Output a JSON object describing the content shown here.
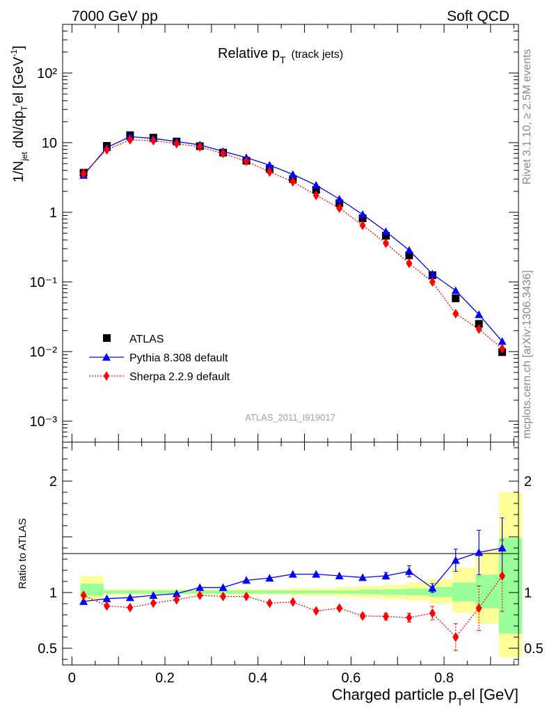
{
  "header": {
    "left": "7000 GeV pp",
    "right": "Soft QCD"
  },
  "side_text": {
    "rivet": "Rivet 3.1.10, ≥ 2.5M events",
    "mcplots": "mcplots.cern.ch [arXiv:1306.3436]"
  },
  "analysis_id": "ATLAS_2011_I919017",
  "colors": {
    "atlas": "#000000",
    "pythia": "#0000ff",
    "sherpa": "#ff0000",
    "band_inner": "#99ff99",
    "band_outer": "#ffff99"
  },
  "chart_data": [
    {
      "type": "scatter",
      "title_main": "Relative p",
      "title_sub": "T",
      "title_extra": "(track jets)",
      "ylabel": "1/N",
      "y_scale": "log",
      "ylim": [
        0.0005,
        500
      ],
      "xlim": [
        -0.02,
        0.96
      ],
      "y_ticks": [
        "10⁻³",
        "10⁻²",
        "10⁻¹",
        "1",
        "10",
        "10²"
      ],
      "legend_position": "lower-left",
      "x": [
        0.025,
        0.075,
        0.125,
        0.175,
        0.225,
        0.275,
        0.325,
        0.375,
        0.425,
        0.475,
        0.525,
        0.575,
        0.625,
        0.675,
        0.725,
        0.775,
        0.825,
        0.875,
        0.925
      ],
      "series": [
        {
          "name": "ATLAS",
          "marker": "square",
          "values": [
            3.7,
            9.0,
            12.8,
            11.8,
            10.4,
            8.9,
            7.2,
            5.5,
            4.2,
            3.0,
            2.1,
            1.35,
            0.82,
            0.46,
            0.24,
            0.125,
            0.058,
            0.025,
            0.0098
          ]
        },
        {
          "name": "Pythia 8.308 default",
          "marker": "triangle",
          "line": "solid",
          "values": [
            3.4,
            8.5,
            12.2,
            11.5,
            10.4,
            9.3,
            7.5,
            6.1,
            4.75,
            3.5,
            2.45,
            1.55,
            0.93,
            0.53,
            0.285,
            0.13,
            0.075,
            0.034,
            0.014
          ]
        },
        {
          "name": "Sherpa 2.2.9 default",
          "marker": "diamond",
          "line": "dotted",
          "values": [
            3.6,
            7.9,
            11.0,
            10.7,
            9.7,
            8.7,
            7.0,
            5.4,
            3.8,
            2.75,
            1.75,
            1.15,
            0.65,
            0.36,
            0.185,
            0.1,
            0.035,
            0.021,
            0.011
          ]
        }
      ]
    },
    {
      "type": "scatter",
      "xlabel": "Charged particle p",
      "xlabel_sub": "T",
      "xlabel_suffix": "el [GeV]",
      "ylabel": "Ratio to ATLAS",
      "ylim": [
        0.35,
        2.35
      ],
      "xlim": [
        -0.02,
        0.96
      ],
      "x_ticks": [
        "0",
        "0.2",
        "0.4",
        "0.6",
        "0.8"
      ],
      "y_ticks": [
        "0.5",
        "1",
        "2"
      ],
      "x": [
        0.025,
        0.075,
        0.125,
        0.175,
        0.225,
        0.275,
        0.325,
        0.375,
        0.425,
        0.475,
        0.525,
        0.575,
        0.625,
        0.675,
        0.725,
        0.775,
        0.825,
        0.875,
        0.925
      ],
      "bands": {
        "edges": [
          0,
          0.05,
          0.1,
          0.15,
          0.2,
          0.25,
          0.3,
          0.35,
          0.4,
          0.45,
          0.5,
          0.55,
          0.6,
          0.65,
          0.7,
          0.75,
          0.8,
          0.85,
          0.9,
          0.95
        ],
        "inner_low": [
          0.97,
          0.99,
          0.99,
          0.99,
          0.99,
          0.99,
          0.99,
          0.99,
          0.99,
          0.99,
          0.99,
          0.99,
          0.985,
          0.98,
          0.975,
          0.96,
          0.92,
          0.86,
          0.63
        ],
        "inner_high": [
          1.08,
          1.02,
          1.02,
          1.02,
          1.02,
          1.02,
          1.02,
          1.02,
          1.02,
          1.02,
          1.02,
          1.02,
          1.025,
          1.03,
          1.035,
          1.05,
          1.09,
          1.16,
          1.49
        ],
        "outer_low": [
          0.93,
          0.98,
          0.98,
          0.98,
          0.98,
          0.98,
          0.98,
          0.98,
          0.98,
          0.97,
          0.97,
          0.96,
          0.95,
          0.94,
          0.93,
          0.9,
          0.82,
          0.72,
          0.42
        ],
        "outer_high": [
          1.15,
          1.03,
          1.03,
          1.03,
          1.03,
          1.03,
          1.03,
          1.03,
          1.03,
          1.04,
          1.04,
          1.05,
          1.06,
          1.07,
          1.09,
          1.12,
          1.22,
          1.38,
          1.9
        ]
      },
      "series": [
        {
          "name": "Pythia 8.308 default",
          "values": [
            0.92,
            0.945,
            0.955,
            0.975,
            0.99,
            1.045,
            1.045,
            1.11,
            1.13,
            1.165,
            1.165,
            1.15,
            1.135,
            1.15,
            1.19,
            1.04,
            1.29,
            1.36,
            1.4
          ],
          "errors": [
            0,
            0,
            0,
            0,
            0,
            0,
            0,
            0,
            0,
            0,
            0,
            0,
            0,
            0.03,
            0.05,
            0.04,
            0.1,
            0.2,
            0.27
          ]
        },
        {
          "name": "Sherpa 2.2.9 default",
          "values": [
            0.975,
            0.88,
            0.865,
            0.905,
            0.935,
            0.975,
            0.965,
            0.965,
            0.905,
            0.915,
            0.835,
            0.86,
            0.79,
            0.785,
            0.775,
            0.815,
            0.6,
            0.86,
            1.15
          ],
          "errors": [
            0,
            0,
            0,
            0,
            0,
            0,
            0,
            0,
            0,
            0,
            0,
            0,
            0.02,
            0.03,
            0.04,
            0.06,
            0.12,
            0.2,
            0.32
          ]
        }
      ]
    }
  ]
}
